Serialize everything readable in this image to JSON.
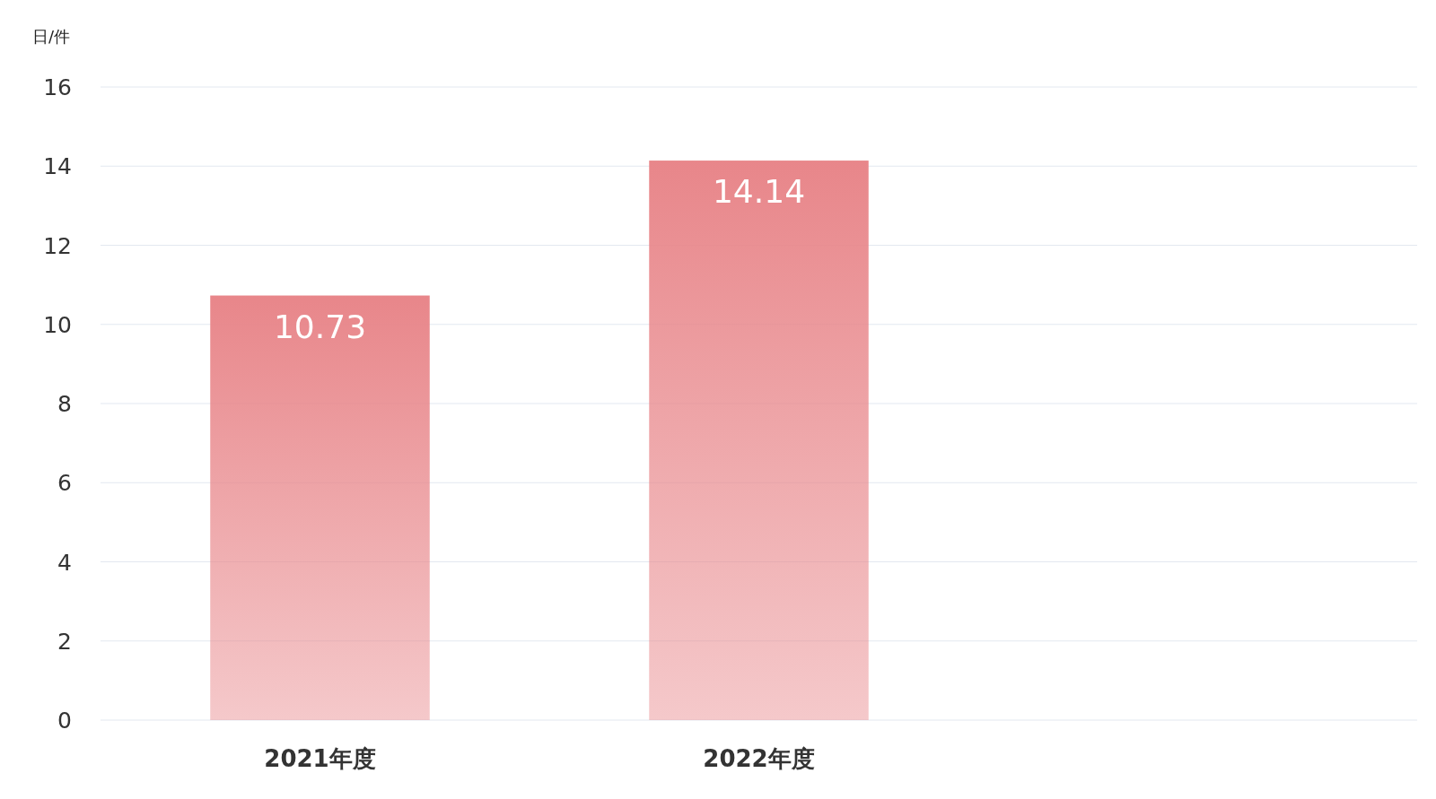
{
  "chart_data": {
    "type": "bar",
    "ylabel": "日/件",
    "categories": [
      "2021年度",
      "2022年度",
      null
    ],
    "values": [
      10.73,
      14.14,
      null
    ],
    "color": "#e8868a",
    "ylim": [
      0,
      16
    ],
    "yticks": [
      0,
      2,
      4,
      6,
      8,
      10,
      12,
      14,
      16
    ],
    "grid": "y",
    "data_labels": true
  }
}
